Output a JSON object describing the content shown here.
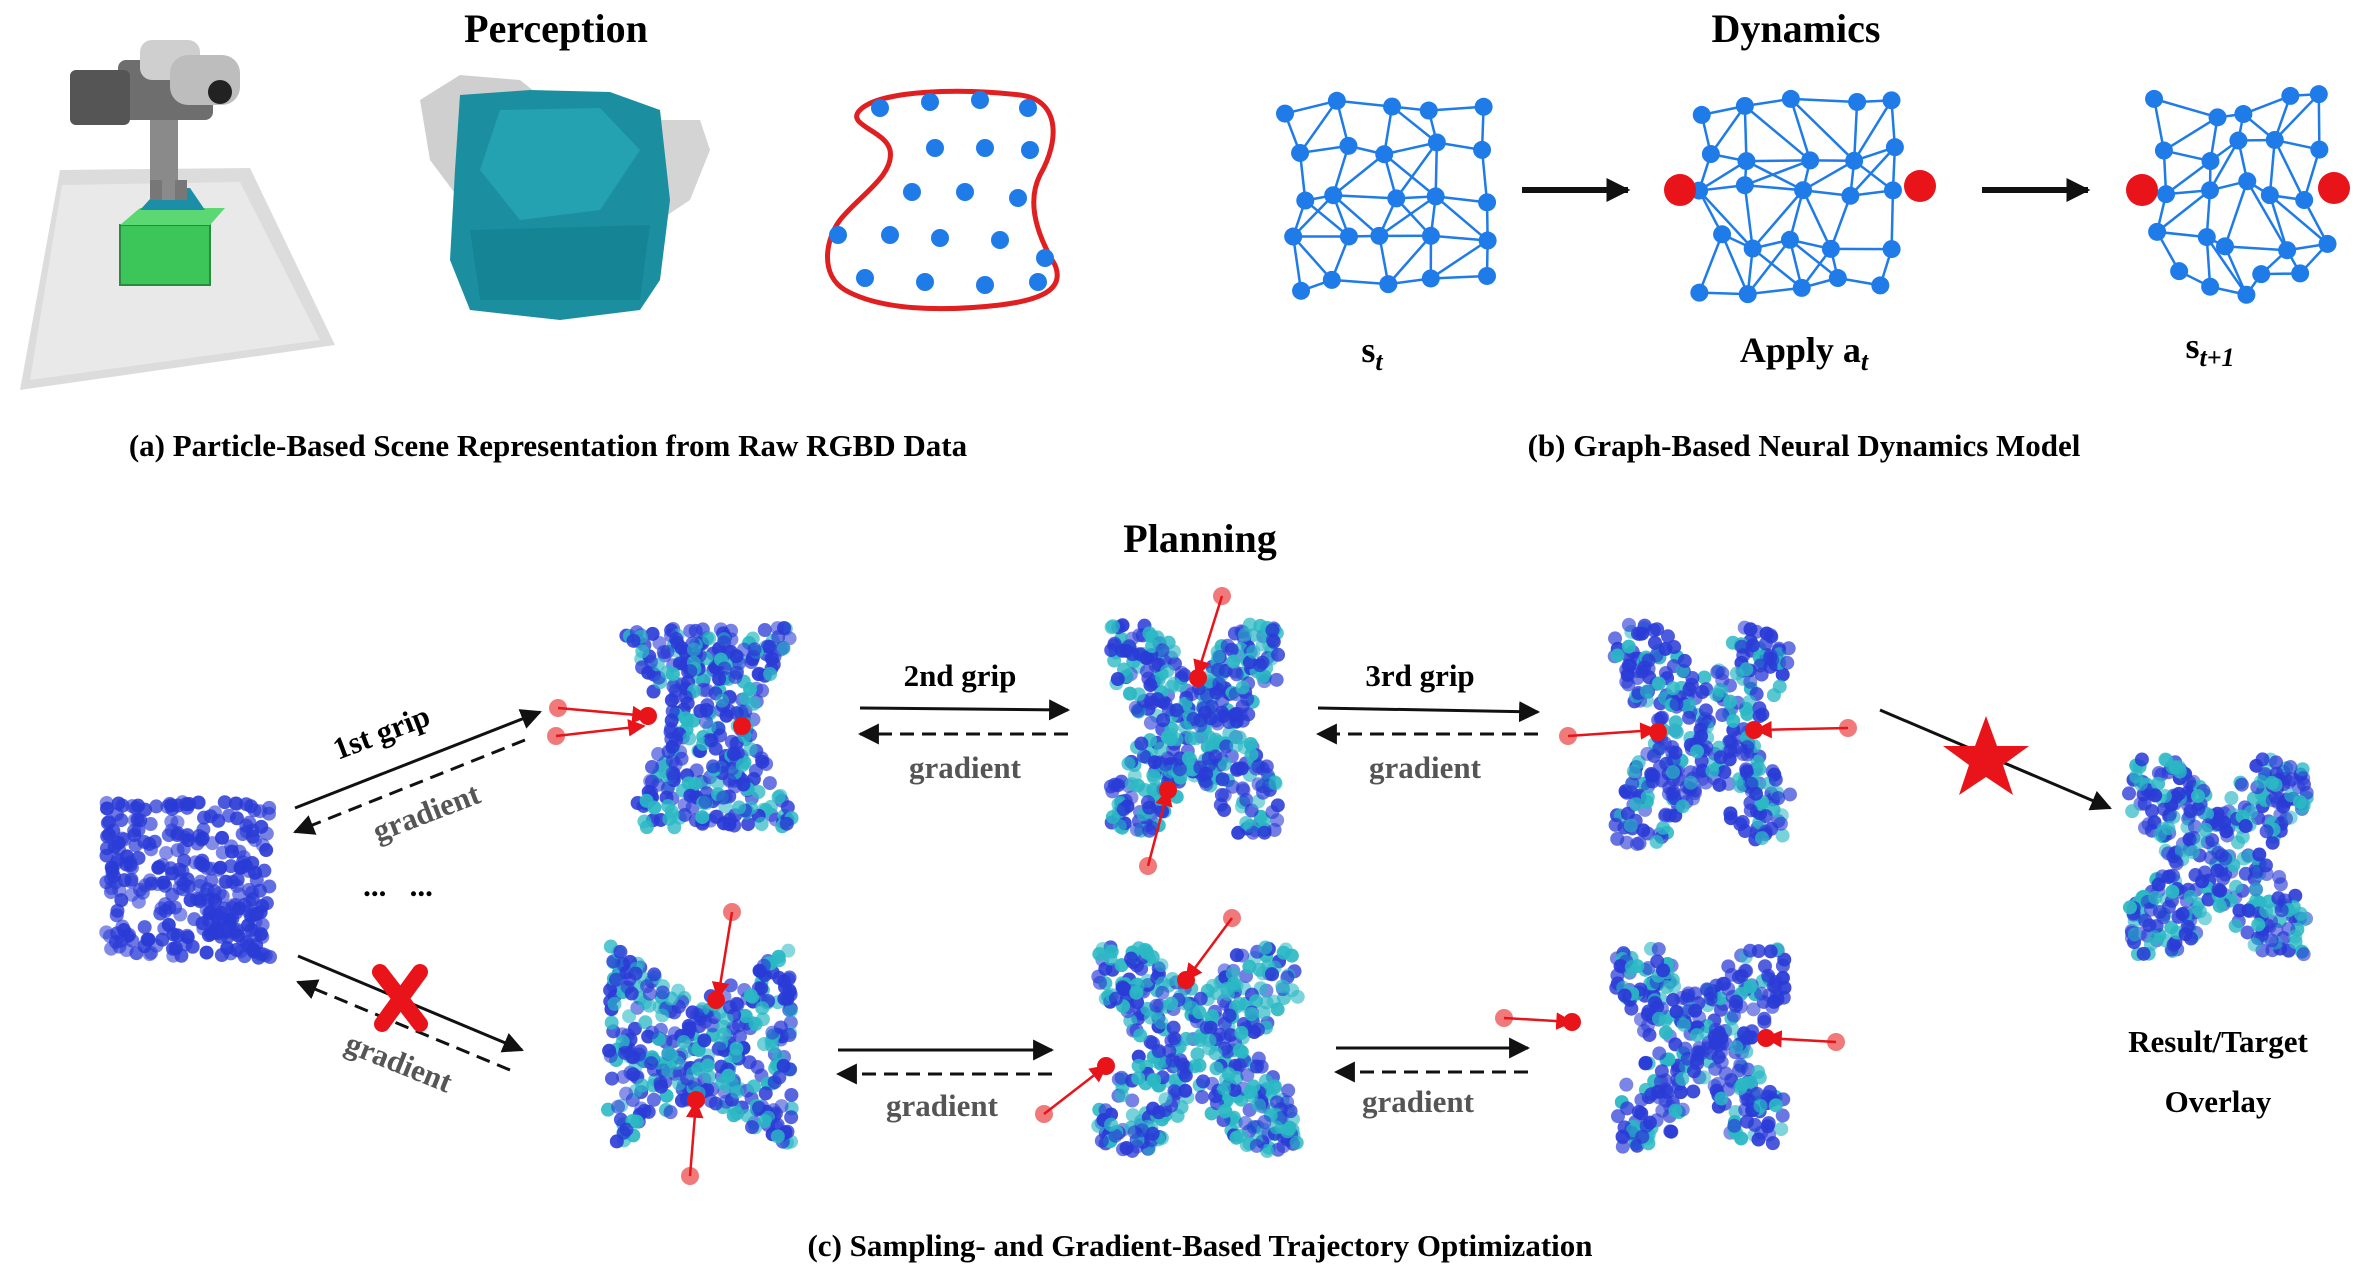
{
  "titles": {
    "perception": "Perception",
    "dynamics": "Dynamics",
    "planning": "Planning"
  },
  "captions": {
    "a": "(a) Particle-Based Scene Representation from Raw RGBD Data",
    "b": "(b) Graph-Based Neural Dynamics Model",
    "c": "(c) Sampling- and Gradient-Based Trajectory Optimization"
  },
  "dynamics": {
    "state_t": "s",
    "state_t_sub": "t",
    "apply_prefix": "Apply ",
    "action": "a",
    "action_sub": "t",
    "state_next": "s",
    "state_next_sub": "t+1"
  },
  "planning": {
    "grip1": "1st grip",
    "grip2": "2nd grip",
    "grip3": "3rd grip",
    "gradient": "gradient",
    "ellipsis": "...   ...",
    "result_line1": "Result/Target",
    "result_line2": "Overlay"
  },
  "colors": {
    "particle_blue": "#2a3bd6",
    "particle_teal": "#2bb8c4",
    "graph_blue": "#1e7be8",
    "gripper_red": "#e8141a",
    "gripper_light": "#f07a7a",
    "boundary_red": "#e02020",
    "cloth_teal": "#1b8fa0",
    "box_green": "#3cc65a"
  },
  "icons": [
    "robot-arm-pointcloud",
    "cloth-pointcloud",
    "star-icon",
    "cross-icon"
  ]
}
